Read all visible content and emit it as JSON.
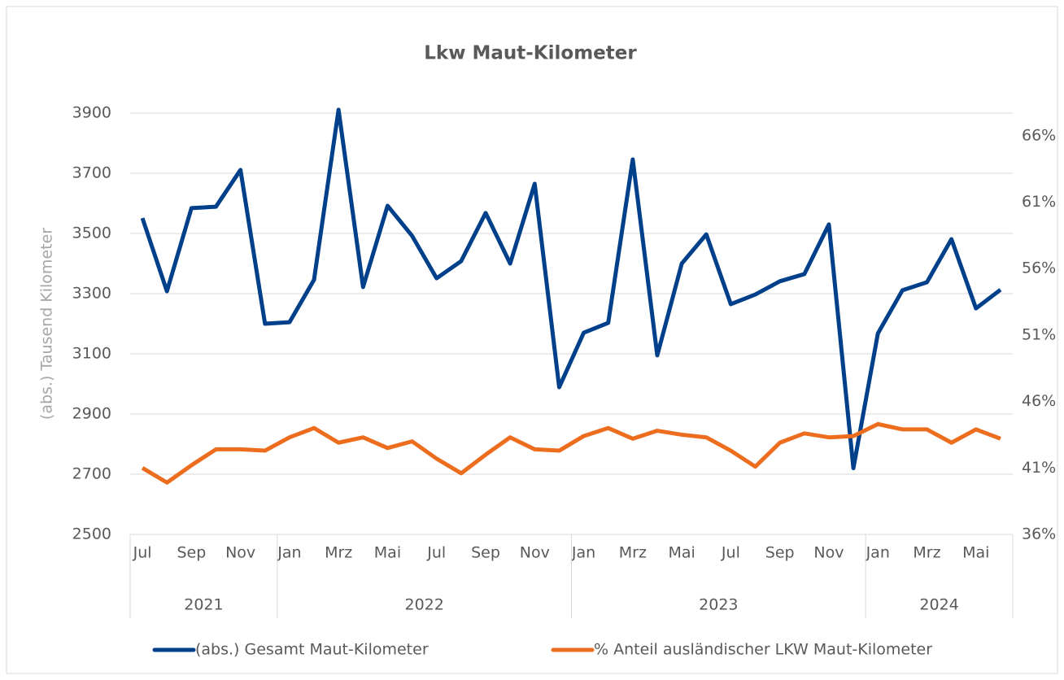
{
  "chart_data": {
    "type": "line",
    "title": "Lkw Maut-Kilometer",
    "y_label": "(abs.) Tausend Kilometer",
    "categories": [
      "Jul",
      null,
      "Sep",
      null,
      "Nov",
      null,
      "Jan",
      null,
      "Mrz",
      null,
      "Mai",
      null,
      "Jul",
      null,
      "Sep",
      null,
      "Nov",
      null,
      "Jan",
      null,
      "Mrz",
      null,
      "Mai",
      null,
      "Jul",
      null,
      "Sep",
      null,
      "Nov",
      null,
      "Jan",
      null,
      "Mrz",
      null,
      "Mai",
      null
    ],
    "years": [
      "2021",
      "2022",
      "2023",
      "2024"
    ],
    "year_spans": [
      6,
      12,
      12,
      6
    ],
    "ylim": [
      2500,
      3900
    ],
    "yticks": [
      2500,
      2700,
      2900,
      3100,
      3300,
      3500,
      3700,
      3900
    ],
    "y2lim": [
      36,
      67.7
    ],
    "y2ticks": [
      {
        "value": 36,
        "label": "36%"
      },
      {
        "value": 41,
        "label": "41%"
      },
      {
        "value": 46,
        "label": "46%"
      },
      {
        "value": 51,
        "label": "51%"
      },
      {
        "value": 56,
        "label": "56%"
      },
      {
        "value": 61,
        "label": "61%"
      },
      {
        "value": 66,
        "label": "66%"
      }
    ],
    "grid": true,
    "legend": "bottom",
    "series": [
      {
        "name": "(abs.) Gesamt Maut-Kilometer",
        "color": "#003f8a",
        "values": [
          3551,
          3308,
          3584,
          3589,
          3711,
          3200,
          3205,
          3346,
          3911,
          3322,
          3592,
          3492,
          3351,
          3408,
          3568,
          3400,
          3665,
          2989,
          3170,
          3203,
          3746,
          3095,
          3400,
          3497,
          3265,
          3297,
          3341,
          3365,
          3530,
          2720,
          3168,
          3311,
          3338,
          3481,
          3251,
          3313
        ]
      },
      {
        "name": "% Anteil ausländischer LKW Maut-Kilometer",
        "color": "#ed6d1f",
        "axis": "y2",
        "values": [
          41.0,
          39.9,
          41.2,
          42.4,
          42.4,
          42.3,
          43.3,
          44.0,
          42.9,
          43.3,
          42.5,
          43.0,
          41.7,
          40.6,
          42.0,
          43.3,
          42.4,
          42.3,
          43.4,
          44.0,
          43.2,
          43.8,
          43.5,
          43.3,
          42.3,
          41.1,
          42.9,
          43.6,
          43.3,
          43.4,
          44.3,
          43.9,
          43.9,
          42.9,
          43.9,
          43.2
        ]
      }
    ]
  }
}
